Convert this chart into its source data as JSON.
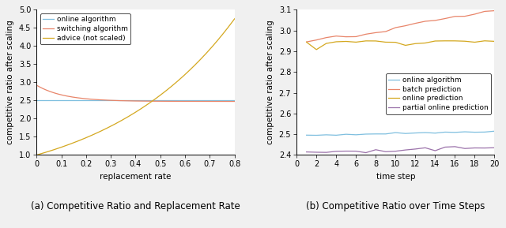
{
  "plot1": {
    "xlabel": "replacement rate",
    "ylabel": "competitive ratio after scaling",
    "xlim": [
      0,
      0.8
    ],
    "ylim": [
      1.0,
      5.0
    ],
    "yticks": [
      1.0,
      1.5,
      2.0,
      2.5,
      3.0,
      3.5,
      4.0,
      4.5,
      5.0
    ],
    "xticks": [
      0,
      0.1,
      0.2,
      0.3,
      0.4,
      0.5,
      0.6,
      0.7,
      0.8
    ],
    "legend_labels": [
      "online algorithm",
      "switching algorithm",
      "advice (not scaled)"
    ],
    "colors": {
      "online": "#7fbfdf",
      "switching": "#e8856a",
      "advice": "#d4a820"
    },
    "caption": "(a) Competitive Ratio and Replacement Rate",
    "online_val": 2.51,
    "switching_start": 2.92,
    "switching_end": 2.475,
    "advice_end": 4.75
  },
  "plot2": {
    "xlabel": "time step",
    "ylabel": "competitive ratio after scaling",
    "xlim": [
      0,
      20
    ],
    "ylim": [
      2.4,
      3.1
    ],
    "yticks": [
      2.4,
      2.5,
      2.6,
      2.7,
      2.8,
      2.9,
      3.0,
      3.1
    ],
    "xticks": [
      0,
      2,
      4,
      6,
      8,
      10,
      12,
      14,
      16,
      18,
      20
    ],
    "legend_labels": [
      "online algorithm",
      "batch prediction",
      "online prediction",
      "partial online prediction"
    ],
    "colors": {
      "online": "#7fbfdf",
      "batch": "#e8856a",
      "online_pred": "#d4a820",
      "partial": "#9b72aa"
    },
    "caption": "(b) Competitive Ratio over Time Steps"
  },
  "fig_bg": "#f0f0f0",
  "axes_bg": "#ffffff"
}
